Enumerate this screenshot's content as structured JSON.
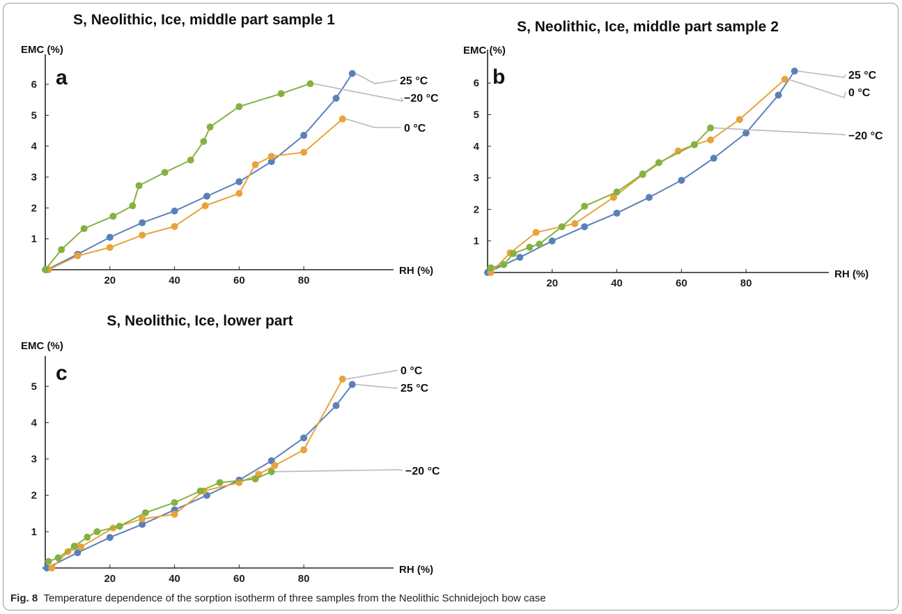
{
  "caption": {
    "label": "Fig. 8",
    "text": "Temperature dependence of the sorption isotherm of three samples from the Neolithic Schnidejoch bow case"
  },
  "colors": {
    "25 °C": "#5b80b9",
    "0 °C": "#e8a33a",
    "−20 °C": "#84b141",
    "leader": "#b8b8b8",
    "axis": "#222222"
  },
  "chart_data": [
    {
      "type": "line",
      "panel": "a",
      "title": "S, Neolithic, Ice, middle part sample 1",
      "xlabel": "RH (%)",
      "ylabel": "EMC (%)",
      "xlim": [
        0,
        97
      ],
      "ylim": [
        0,
        6.7
      ],
      "xticks": [
        20,
        40,
        60,
        80
      ],
      "yticks": [
        1,
        2,
        3,
        4,
        5,
        6
      ],
      "series": [
        {
          "name": "25 °C",
          "points": [
            [
              0.5,
              0
            ],
            [
              10,
              0.5
            ],
            [
              20,
              1.05
            ],
            [
              30,
              1.52
            ],
            [
              40,
              1.9
            ],
            [
              50,
              2.38
            ],
            [
              60,
              2.85
            ],
            [
              70,
              3.5
            ],
            [
              80,
              4.35
            ],
            [
              90,
              5.55
            ],
            [
              95,
              6.35
            ]
          ]
        },
        {
          "name": "0 °C",
          "points": [
            [
              1,
              0
            ],
            [
              10,
              0.45
            ],
            [
              20,
              0.72
            ],
            [
              30,
              1.12
            ],
            [
              40,
              1.4
            ],
            [
              49.5,
              2.07
            ],
            [
              60,
              2.47
            ],
            [
              65,
              3.4
            ],
            [
              70,
              3.67
            ],
            [
              80,
              3.8
            ],
            [
              92,
              4.88
            ]
          ]
        },
        {
          "name": "−20 °C",
          "points": [
            [
              0,
              0
            ],
            [
              5,
              0.65
            ],
            [
              12,
              1.33
            ],
            [
              21,
              1.73
            ],
            [
              27,
              2.07
            ],
            [
              29,
              2.72
            ],
            [
              37,
              3.15
            ],
            [
              45,
              3.55
            ],
            [
              49,
              4.15
            ],
            [
              51,
              4.62
            ],
            [
              60,
              5.28
            ],
            [
              73,
              5.7
            ],
            [
              82,
              6.02
            ]
          ]
        }
      ]
    },
    {
      "type": "line",
      "panel": "b",
      "title": "S, Neolithic, Ice,  middle part sample 2",
      "xlabel": "RH (%)",
      "ylabel": "EMC (%)",
      "xlim": [
        0,
        97
      ],
      "ylim": [
        0,
        6.8
      ],
      "xticks": [
        20,
        40,
        60,
        80
      ],
      "yticks": [
        1,
        2,
        3,
        4,
        5,
        6
      ],
      "series": [
        {
          "name": "25 °C",
          "points": [
            [
              0,
              0
            ],
            [
              10,
              0.48
            ],
            [
              20,
              1.0
            ],
            [
              30,
              1.45
            ],
            [
              40,
              1.88
            ],
            [
              50,
              2.38
            ],
            [
              60,
              2.92
            ],
            [
              70,
              3.62
            ],
            [
              80,
              4.42
            ],
            [
              90,
              5.62
            ],
            [
              95,
              6.38
            ]
          ]
        },
        {
          "name": "0 °C",
          "points": [
            [
              1,
              0
            ],
            [
              7,
              0.62
            ],
            [
              15,
              1.27
            ],
            [
              27,
              1.55
            ],
            [
              39,
              2.38
            ],
            [
              48,
              3.1
            ],
            [
              59,
              3.85
            ],
            [
              64,
              4.05
            ],
            [
              69,
              4.2
            ],
            [
              78,
              4.85
            ],
            [
              92,
              6.12
            ]
          ]
        },
        {
          "name": "−20 °C",
          "points": [
            [
              1,
              0.15
            ],
            [
              5,
              0.25
            ],
            [
              8,
              0.6
            ],
            [
              13,
              0.8
            ],
            [
              16,
              0.9
            ],
            [
              23,
              1.45
            ],
            [
              30,
              2.1
            ],
            [
              40,
              2.55
            ],
            [
              48,
              3.12
            ],
            [
              53,
              3.48
            ],
            [
              64,
              4.05
            ],
            [
              69,
              4.58
            ]
          ]
        }
      ]
    },
    {
      "type": "line",
      "panel": "c",
      "title": "S, Neolithic, Ice, lower part",
      "xlabel": "RH (%)",
      "ylabel": "EMC (%)",
      "xlim": [
        0,
        97
      ],
      "ylim": [
        0,
        5.6
      ],
      "xticks": [
        20,
        40,
        60,
        80
      ],
      "yticks": [
        1,
        2,
        3,
        4,
        5
      ],
      "series": [
        {
          "name": "25 °C",
          "points": [
            [
              0.5,
              0
            ],
            [
              10,
              0.42
            ],
            [
              20,
              0.84
            ],
            [
              30,
              1.2
            ],
            [
              40,
              1.6
            ],
            [
              50,
              2.0
            ],
            [
              60,
              2.42
            ],
            [
              70,
              2.95
            ],
            [
              80,
              3.58
            ],
            [
              90,
              4.47
            ],
            [
              95,
              5.05
            ]
          ]
        },
        {
          "name": "0 °C",
          "points": [
            [
              2,
              0
            ],
            [
              7,
              0.45
            ],
            [
              11,
              0.58
            ],
            [
              21,
              1.1
            ],
            [
              30,
              1.35
            ],
            [
              40,
              1.48
            ],
            [
              49,
              2.12
            ],
            [
              60,
              2.35
            ],
            [
              66,
              2.58
            ],
            [
              71,
              2.82
            ],
            [
              80,
              3.25
            ],
            [
              92,
              5.2
            ]
          ]
        },
        {
          "name": "−20 °C",
          "points": [
            [
              1,
              0.18
            ],
            [
              4,
              0.28
            ],
            [
              9,
              0.6
            ],
            [
              13,
              0.85
            ],
            [
              16,
              1.0
            ],
            [
              23,
              1.15
            ],
            [
              31,
              1.52
            ],
            [
              40,
              1.8
            ],
            [
              48,
              2.12
            ],
            [
              54,
              2.35
            ],
            [
              65,
              2.45
            ],
            [
              70,
              2.65
            ]
          ]
        }
      ]
    }
  ]
}
